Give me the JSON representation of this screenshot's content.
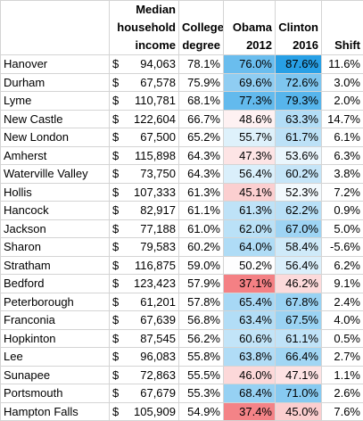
{
  "table": {
    "header": [
      [
        "Median",
        "household",
        "income"
      ],
      [
        "College",
        "degree"
      ],
      [
        "Obama",
        "2012"
      ],
      [
        "Clinton",
        "2016"
      ],
      [
        "Shift"
      ]
    ],
    "rows": [
      [
        "Hanover",
        "$",
        "94,063",
        "78.1%",
        "76.0%",
        "87.6%",
        "11.6%"
      ],
      [
        "Durham",
        "$",
        "67,578",
        "75.9%",
        "69.6%",
        "72.6%",
        "3.0%"
      ],
      [
        "Lyme",
        "$",
        "110,781",
        "68.1%",
        "77.3%",
        "79.3%",
        "2.0%"
      ],
      [
        "New Castle",
        "$",
        "122,604",
        "66.7%",
        "48.6%",
        "63.3%",
        "14.7%"
      ],
      [
        "New London",
        "$",
        "67,500",
        "65.2%",
        "55.7%",
        "61.7%",
        "6.1%"
      ],
      [
        "Amherst",
        "$",
        "115,898",
        "64.3%",
        "47.3%",
        "53.6%",
        "6.3%"
      ],
      [
        "Waterville Valley",
        "$",
        "73,750",
        "64.3%",
        "56.4%",
        "60.2%",
        "3.8%"
      ],
      [
        "Hollis",
        "$",
        "107,333",
        "61.3%",
        "45.1%",
        "52.3%",
        "7.2%"
      ],
      [
        "Hancock",
        "$",
        "82,917",
        "61.1%",
        "61.3%",
        "62.2%",
        "0.9%"
      ],
      [
        "Jackson",
        "$",
        "77,188",
        "61.0%",
        "62.0%",
        "67.0%",
        "5.0%"
      ],
      [
        "Sharon",
        "$",
        "79,583",
        "60.2%",
        "64.0%",
        "58.4%",
        "-5.6%"
      ],
      [
        "Stratham",
        "$",
        "116,875",
        "59.0%",
        "50.2%",
        "56.4%",
        "6.2%"
      ],
      [
        "Bedford",
        "$",
        "123,423",
        "57.9%",
        "37.1%",
        "46.2%",
        "9.1%"
      ],
      [
        "Peterborough",
        "$",
        "61,201",
        "57.8%",
        "65.4%",
        "67.8%",
        "2.4%"
      ],
      [
        "Franconia",
        "$",
        "67,639",
        "56.8%",
        "63.4%",
        "67.5%",
        "4.0%"
      ],
      [
        "Hopkinton",
        "$",
        "87,545",
        "56.2%",
        "60.6%",
        "61.1%",
        "0.5%"
      ],
      [
        "Lee",
        "$",
        "96,083",
        "55.8%",
        "63.8%",
        "66.4%",
        "2.7%"
      ],
      [
        "Sunapee",
        "$",
        "72,863",
        "55.5%",
        "46.0%",
        "47.1%",
        "1.1%"
      ],
      [
        "Portsmouth",
        "$",
        "67,679",
        "55.3%",
        "68.4%",
        "71.0%",
        "2.6%"
      ],
      [
        "Hampton Falls",
        "$",
        "105,909",
        "54.9%",
        "37.4%",
        "45.0%",
        "7.6%"
      ]
    ]
  }
}
